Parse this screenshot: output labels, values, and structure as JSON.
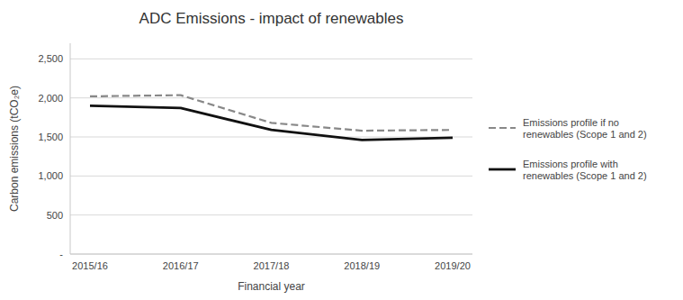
{
  "chart_data": {
    "type": "line",
    "title": "ADC Emissions - impact of renewables",
    "x_label": "Financial year",
    "y_label": "Carbon emissions (tCO₂e)",
    "categories": [
      "2015/16",
      "2016/17",
      "2017/18",
      "2018/19",
      "2019/20"
    ],
    "series": [
      {
        "name": "Emissions profile if no\nrenewables (Scope 1 and 2)",
        "color": "#888888",
        "line_style": "dashed",
        "values": [
          2020,
          2035,
          1680,
          1580,
          1590
        ]
      },
      {
        "name": "Emissions profile with\nrenewables (Scope 1 and 2)",
        "color": "#111111",
        "line_style": "solid",
        "values": [
          1900,
          1870,
          1590,
          1460,
          1490
        ]
      }
    ],
    "ylim": [
      0,
      2700
    ],
    "yticks": [
      {
        "value": 0,
        "label": "-"
      },
      500,
      {
        "value": 1000,
        "label": "1,000"
      },
      {
        "value": 1500,
        "label": "1,500"
      },
      {
        "value": 2000,
        "label": "2,000"
      },
      {
        "value": 2500,
        "label": "2,500"
      }
    ],
    "grid": true,
    "legend": "right"
  }
}
